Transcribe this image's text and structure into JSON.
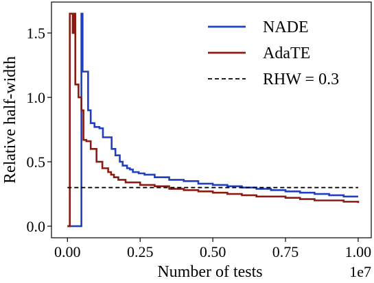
{
  "chart_data": {
    "type": "line",
    "xlabel": "Number of tests",
    "ylabel": "Relative half-width",
    "x_offset_label": "1e7",
    "xlim": [
      -0.055,
      1.045
    ],
    "ylim": [
      -0.09,
      1.74
    ],
    "x_ticks": [
      0.0,
      0.25,
      0.5,
      0.75,
      1.0
    ],
    "x_tick_labels": [
      "0.00",
      "0.25",
      "0.50",
      "0.75",
      "1.00"
    ],
    "y_ticks": [
      0.0,
      0.5,
      1.0,
      1.5
    ],
    "y_tick_labels": [
      "0.0",
      "0.5",
      "1.0",
      "1.5"
    ],
    "grid": false,
    "legend_position": "top-right",
    "legend": [
      {
        "label": "NADE",
        "color": "#1f3fbf",
        "style": "solid"
      },
      {
        "label": "AdaTE",
        "color": "#8b1a10",
        "style": "solid"
      },
      {
        "label": "RHW = 0.3",
        "color": "#000000",
        "style": "dashed"
      }
    ],
    "series": [
      {
        "name": "NADE",
        "color": "#1f3fbf",
        "step": true,
        "x": [
          0.0,
          0.048,
          0.048,
          0.052,
          0.062,
          0.071,
          0.08,
          0.093,
          0.11,
          0.122,
          0.152,
          0.165,
          0.18,
          0.19,
          0.205,
          0.215,
          0.225,
          0.245,
          0.265,
          0.3,
          0.35,
          0.4,
          0.45,
          0.5,
          0.55,
          0.6,
          0.65,
          0.7,
          0.75,
          0.8,
          0.85,
          0.9,
          0.95,
          1.0
        ],
        "y": [
          0.0,
          0.0,
          1.65,
          1.2,
          1.2,
          0.9,
          0.8,
          0.77,
          0.76,
          0.69,
          0.6,
          0.55,
          0.5,
          0.47,
          0.45,
          0.44,
          0.42,
          0.41,
          0.4,
          0.38,
          0.36,
          0.35,
          0.33,
          0.32,
          0.31,
          0.3,
          0.29,
          0.28,
          0.27,
          0.26,
          0.25,
          0.24,
          0.23,
          0.23
        ]
      },
      {
        "name": "AdaTE",
        "color": "#8b1a10",
        "step": true,
        "x": [
          0.0,
          0.0,
          0.008,
          0.008,
          0.018,
          0.022,
          0.027,
          0.038,
          0.048,
          0.055,
          0.065,
          0.08,
          0.1,
          0.12,
          0.14,
          0.15,
          0.16,
          0.175,
          0.2,
          0.25,
          0.3,
          0.35,
          0.4,
          0.45,
          0.5,
          0.55,
          0.6,
          0.65,
          0.7,
          0.75,
          0.8,
          0.85,
          0.9,
          0.95,
          1.0
        ],
        "y": [
          0.0,
          0.0,
          0.0,
          1.65,
          1.5,
          1.65,
          1.1,
          1.0,
          0.9,
          0.67,
          0.66,
          0.6,
          0.5,
          0.45,
          0.42,
          0.4,
          0.38,
          0.36,
          0.34,
          0.32,
          0.31,
          0.29,
          0.28,
          0.27,
          0.26,
          0.25,
          0.24,
          0.23,
          0.23,
          0.22,
          0.21,
          0.2,
          0.2,
          0.19,
          0.18
        ]
      },
      {
        "name": "RHW = 0.3",
        "color": "#000000",
        "dashed": true,
        "x": [
          0.0,
          1.0
        ],
        "y": [
          0.3,
          0.3
        ]
      }
    ]
  }
}
